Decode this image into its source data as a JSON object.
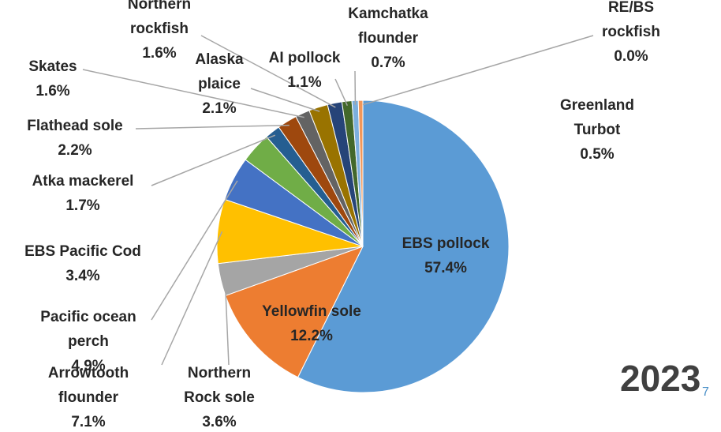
{
  "chart_data": {
    "type": "pie",
    "categories": [
      "EBS pollock",
      "Yellowfin sole",
      "Northern Rock sole",
      "Arrowtooth flounder",
      "Pacific ocean perch",
      "EBS Pacific Cod",
      "Atka mackerel",
      "Flathead sole",
      "Skates",
      "Alaska plaice",
      "Northern rockfish",
      "AI pollock",
      "Kamchatka flounder",
      "Greenland Turbot",
      "RE/BS rockfish"
    ],
    "values": [
      57.4,
      12.2,
      3.6,
      7.1,
      4.9,
      3.4,
      1.7,
      2.2,
      1.6,
      2.1,
      1.6,
      1.1,
      0.7,
      0.5,
      0.0
    ],
    "value_labels": [
      "57.4%",
      "12.2%",
      "3.6%",
      "7.1%",
      "4.9%",
      "3.4%",
      "1.7%",
      "2.2%",
      "1.6%",
      "2.1%",
      "1.6%",
      "1.1%",
      "0.7%",
      "0.5%",
      "0.0%"
    ],
    "colors": [
      "#5b9bd5",
      "#ed7d31",
      "#a5a5a5",
      "#ffc000",
      "#4472c4",
      "#70ad47",
      "#255e91",
      "#9e480e",
      "#636363",
      "#997300",
      "#264478",
      "#43682b",
      "#7cafdd",
      "#f1975a",
      "#b7b7b7"
    ],
    "annotations": [
      "2023",
      "7"
    ]
  }
}
